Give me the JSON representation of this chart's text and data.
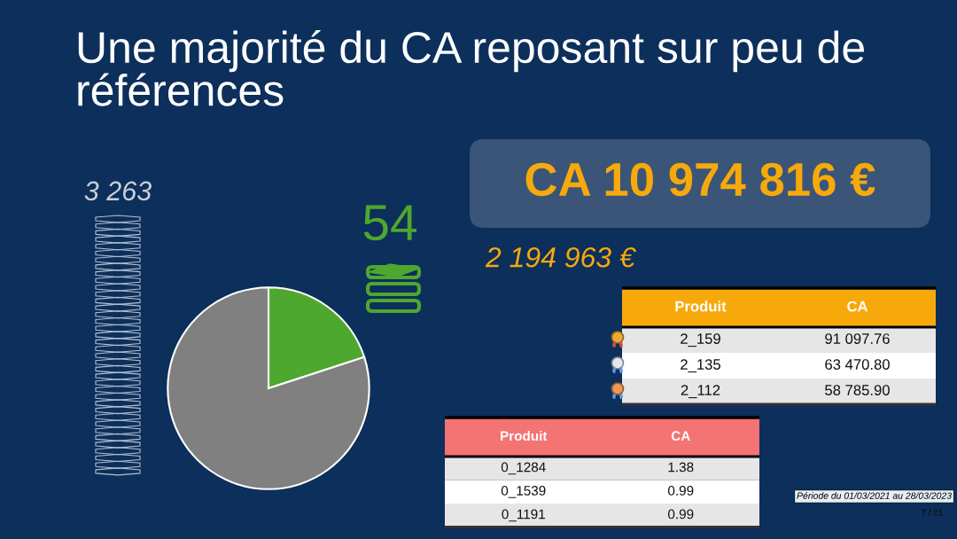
{
  "chart_data": [
    {
      "type": "pie",
      "title": "Une majorité du CA reposant sur peu de références",
      "categories": [
        null,
        null
      ],
      "values": [
        20,
        80
      ],
      "colors": [
        "#4ea72e",
        "#808080"
      ],
      "annotations": [
        "CA 10 974 816 €",
        "2 194 963 €",
        "54",
        "3 263",
        "Période du 01/03/2021 au 28/03/2023",
        "7 / 21"
      ]
    },
    {
      "type": "other",
      "categories": [
        "Produit",
        "CA"
      ],
      "annotations": [
        "2_159",
        "91 097.76",
        "2_135",
        "63 470.80",
        "2_112",
        "58 785.90"
      ],
      "color": "#f7a90c"
    },
    {
      "type": "other",
      "categories": [
        "Produit",
        "CA"
      ],
      "annotations": [
        "0_1284",
        "1.38",
        "0_1539",
        "0.99",
        "0_1191",
        "0.99"
      ],
      "color": "#f47373"
    }
  ]
}
